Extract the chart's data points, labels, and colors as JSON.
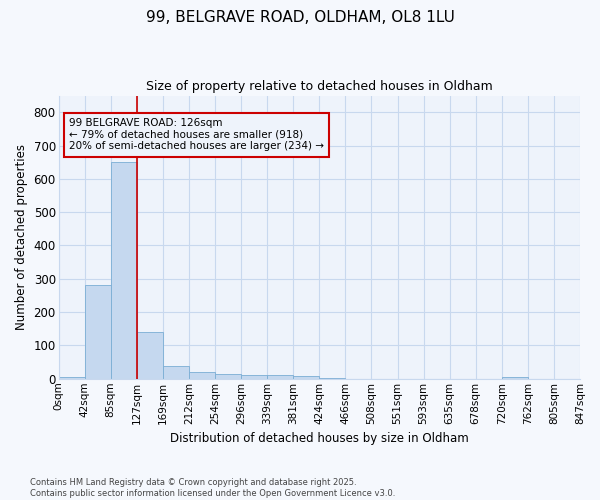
{
  "title_line1": "99, BELGRAVE ROAD, OLDHAM, OL8 1LU",
  "title_line2": "Size of property relative to detached houses in Oldham",
  "xlabel": "Distribution of detached houses by size in Oldham",
  "ylabel": "Number of detached properties",
  "footnote": "Contains HM Land Registry data © Crown copyright and database right 2025.\nContains public sector information licensed under the Open Government Licence v3.0.",
  "bin_labels": [
    "0sqm",
    "42sqm",
    "85sqm",
    "127sqm",
    "169sqm",
    "212sqm",
    "254sqm",
    "296sqm",
    "339sqm",
    "381sqm",
    "424sqm",
    "466sqm",
    "508sqm",
    "551sqm",
    "593sqm",
    "635sqm",
    "678sqm",
    "720sqm",
    "762sqm",
    "805sqm",
    "847sqm"
  ],
  "bar_values": [
    5,
    280,
    650,
    140,
    38,
    20,
    15,
    12,
    12,
    7,
    2,
    0,
    0,
    0,
    0,
    0,
    0,
    5,
    0,
    0
  ],
  "bar_color": "#c5d8ef",
  "bar_edge_color": "#7aadd4",
  "grid_color": "#c8d8ee",
  "background_color": "#f5f8fd",
  "plot_bg_color": "#eef3fb",
  "vline_x_index": 3,
  "vline_color": "#cc0000",
  "annotation_text": "99 BELGRAVE ROAD: 126sqm\n← 79% of detached houses are smaller (918)\n20% of semi-detached houses are larger (234) →",
  "annotation_box_color": "#cc0000",
  "ylim": [
    0,
    850
  ],
  "yticks": [
    0,
    100,
    200,
    300,
    400,
    500,
    600,
    700,
    800
  ]
}
